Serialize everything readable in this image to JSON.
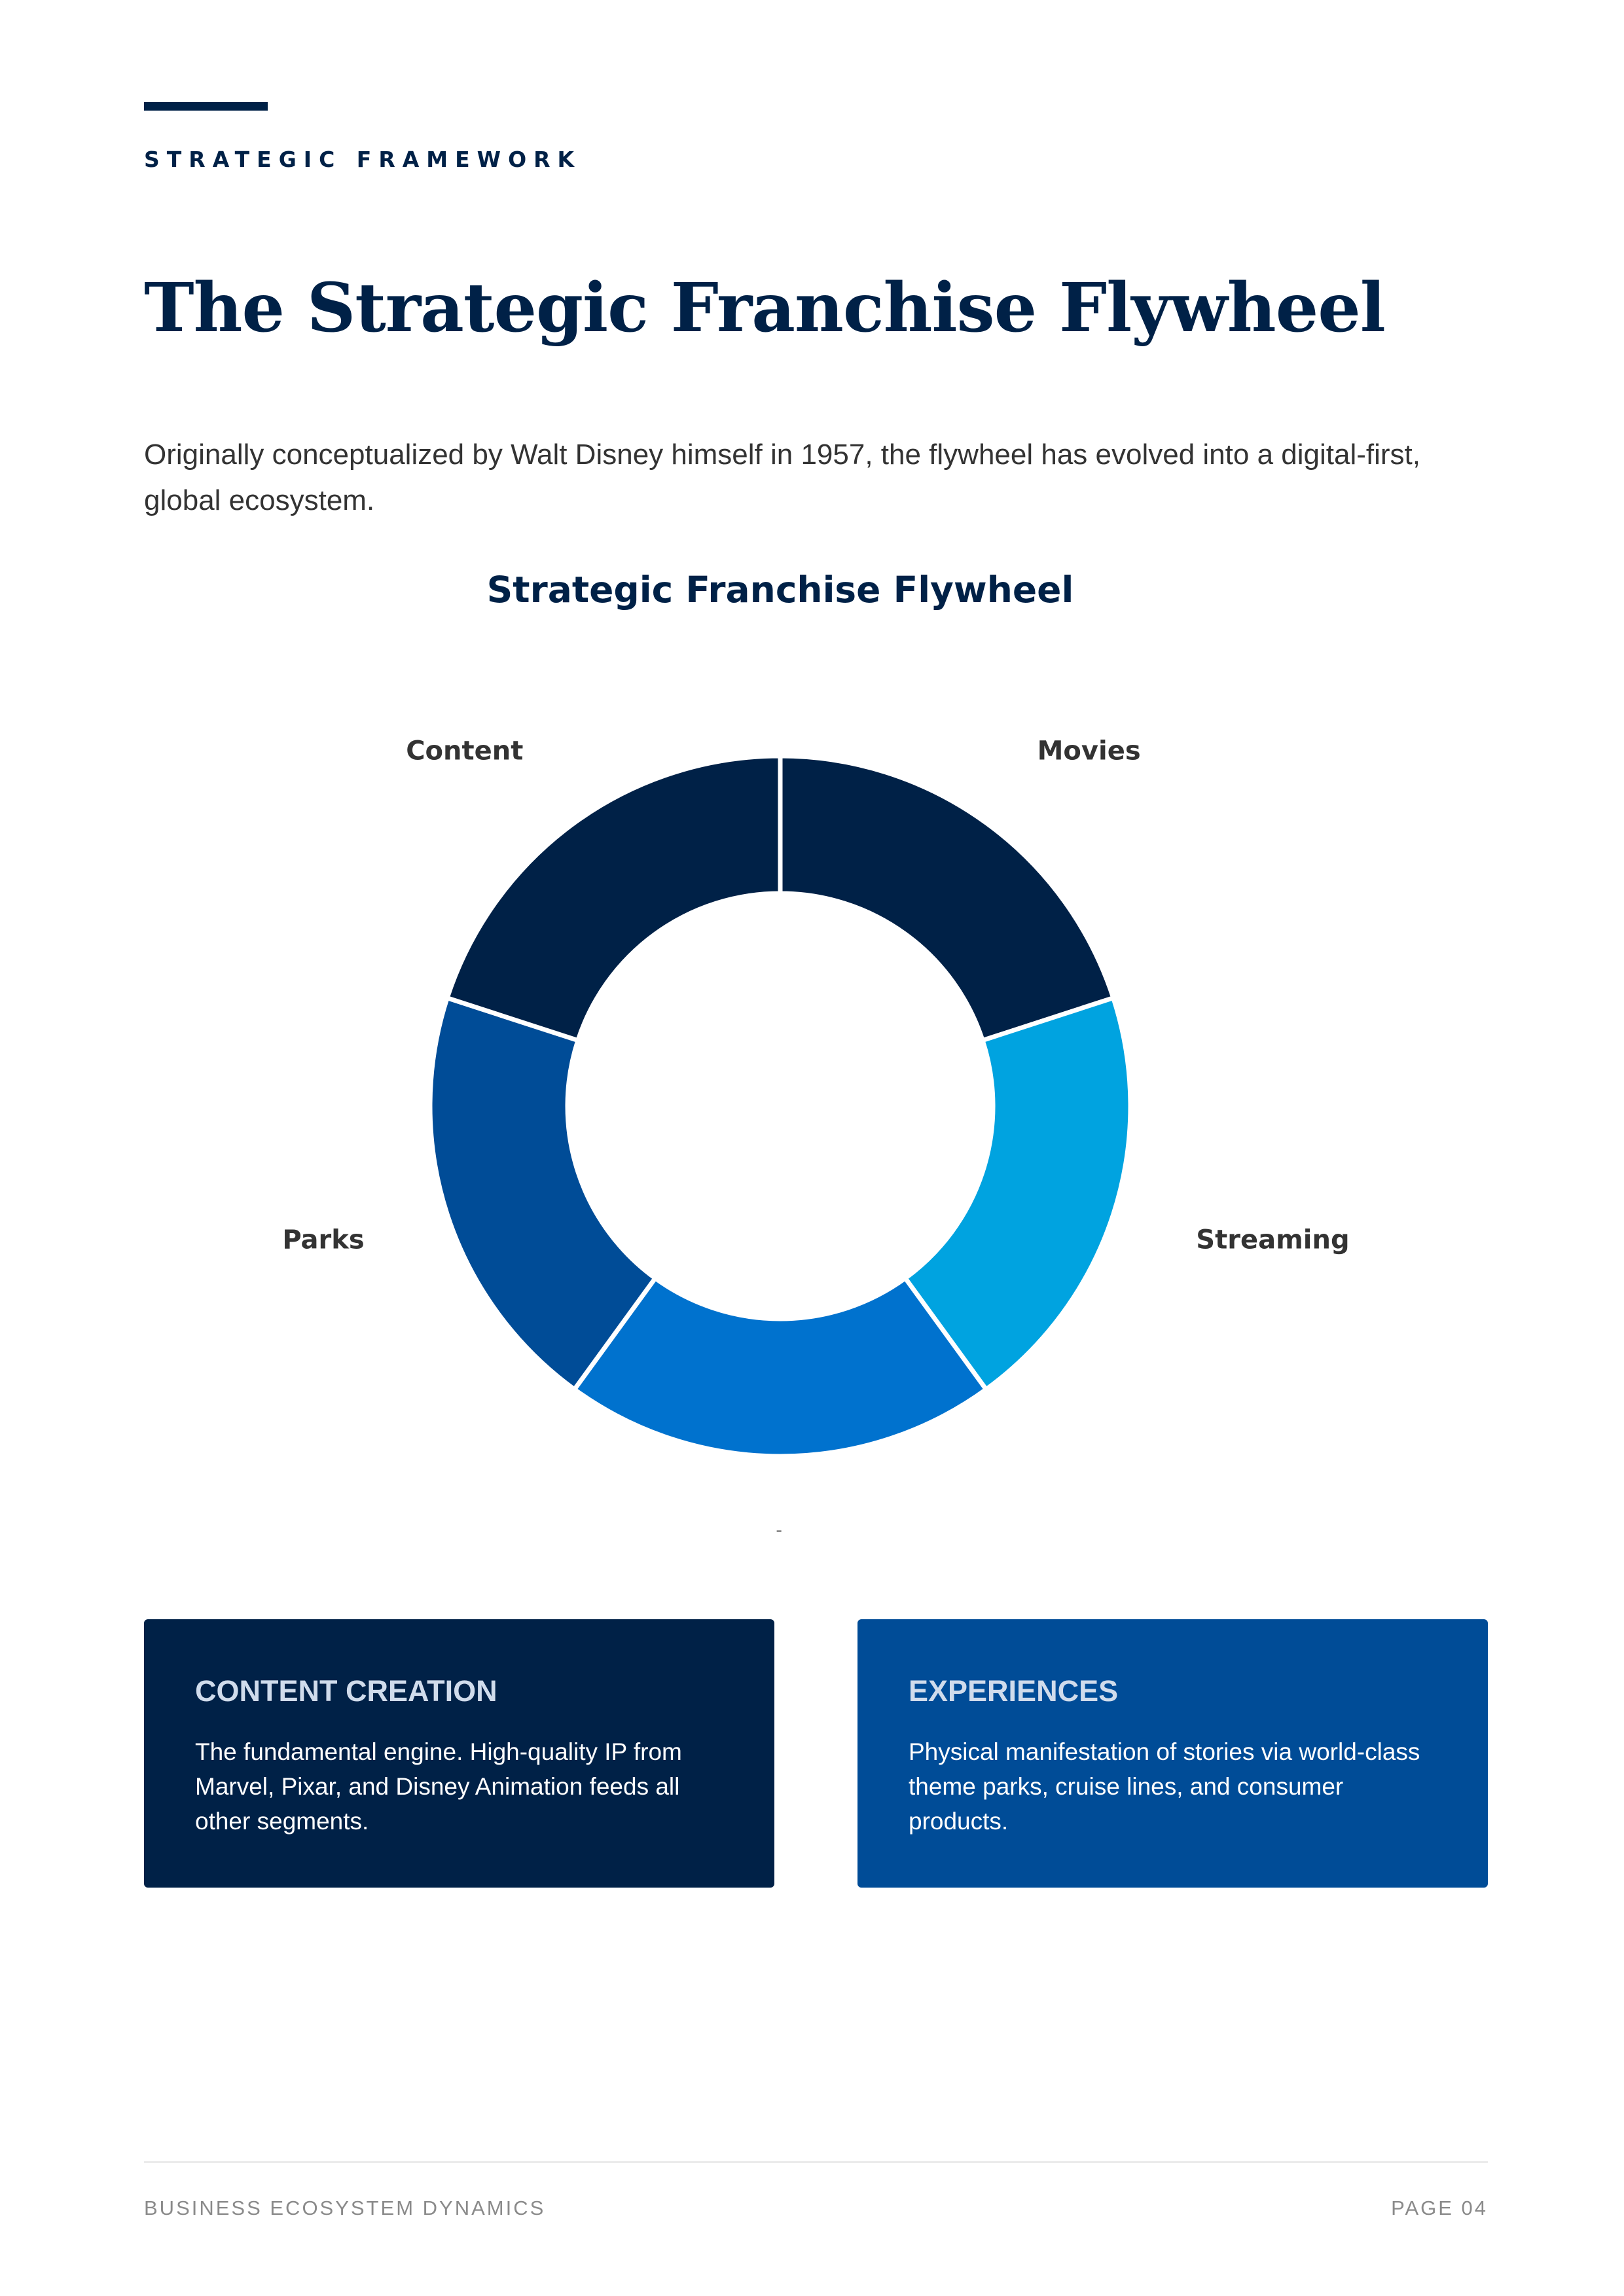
{
  "header": {
    "eyebrow": "STRATEGIC FRAMEWORK",
    "title": "The Strategic Franchise Flywheel",
    "intro": "Originally conceptualized by Walt Disney himself in 1957, the flywheel has evolved into a digital-first, global ecosystem."
  },
  "chart_data": {
    "type": "pie",
    "subtype": "donut",
    "title": "Strategic Franchise Flywheel",
    "categories": [
      "Movies",
      "Streaming",
      "Products",
      "Parks",
      "Content"
    ],
    "values": [
      20,
      20,
      20,
      20,
      20
    ],
    "colors": [
      "#002147",
      "#00A3E0",
      "#0072CE",
      "#004C97",
      "#002147"
    ],
    "start_angle": "12 o'clock",
    "direction": "clockwise",
    "legend": "none (labels placed outside slices)"
  },
  "cards": [
    {
      "title": "CONTENT CREATION",
      "text": "The fundamental engine. High-quality IP from Marvel, Pixar, and Disney Animation feeds all other segments.",
      "color": "#002147"
    },
    {
      "title": "EXPERIENCES",
      "text": "Physical manifestation of stories via world-class theme parks, cruise lines, and consumer products.",
      "color": "#004C97"
    }
  ],
  "footer": {
    "left": "BUSINESS ECOSYSTEM DYNAMICS",
    "right": "PAGE 04"
  }
}
